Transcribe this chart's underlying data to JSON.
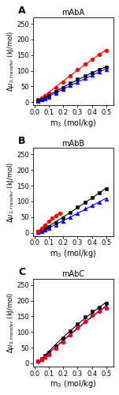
{
  "panels": [
    {
      "label": "A",
      "title": "mAbA",
      "series": [
        {
          "color": "red",
          "marker": "o",
          "x": [
            0.025,
            0.05,
            0.075,
            0.1,
            0.15,
            0.2,
            0.25,
            0.3,
            0.35,
            0.4,
            0.45,
            0.5
          ],
          "y": [
            8,
            14,
            20,
            28,
            45,
            65,
            85,
            105,
            122,
            138,
            152,
            165
          ]
        },
        {
          "color": "black",
          "marker": "s",
          "x": [
            0.025,
            0.05,
            0.075,
            0.1,
            0.15,
            0.2,
            0.25,
            0.3,
            0.35,
            0.4,
            0.45,
            0.5
          ],
          "y": [
            5,
            9,
            14,
            20,
            33,
            47,
            60,
            73,
            84,
            94,
            103,
            112
          ]
        },
        {
          "color": "blue",
          "marker": "^",
          "x": [
            0.025,
            0.05,
            0.075,
            0.1,
            0.15,
            0.2,
            0.25,
            0.3,
            0.35,
            0.4,
            0.45,
            0.5
          ],
          "y": [
            4,
            8,
            12,
            17,
            28,
            40,
            53,
            65,
            77,
            87,
            96,
            105
          ]
        }
      ],
      "ylim": [
        -10,
        270
      ],
      "yticks": [
        0,
        50,
        100,
        150,
        200,
        250
      ],
      "xlim": [
        -0.01,
        0.55
      ],
      "xticks": [
        0.0,
        0.1,
        0.2,
        0.3,
        0.4,
        0.5
      ]
    },
    {
      "label": "B",
      "title": "mAbB",
      "series": [
        {
          "color": "black",
          "marker": "s",
          "x": [
            0.025,
            0.05,
            0.075,
            0.1,
            0.15,
            0.2,
            0.25,
            0.3,
            0.35,
            0.4,
            0.45,
            0.5
          ],
          "y": [
            3,
            7,
            13,
            19,
            32,
            48,
            65,
            82,
            98,
            112,
            127,
            140
          ]
        },
        {
          "color": "blue",
          "marker": "^",
          "x": [
            0.025,
            0.05,
            0.075,
            0.1,
            0.15,
            0.2,
            0.25,
            0.3,
            0.35,
            0.4,
            0.45,
            0.5
          ],
          "y": [
            2,
            5,
            9,
            14,
            24,
            37,
            50,
            63,
            76,
            88,
            98,
            108
          ]
        },
        {
          "color": "red",
          "marker": "o",
          "x": [
            0.025,
            0.05,
            0.075,
            0.1,
            0.125,
            0.15,
            0.175
          ],
          "y": [
            5,
            14,
            24,
            36,
            46,
            55,
            62
          ]
        }
      ],
      "ylim": [
        -10,
        270
      ],
      "yticks": [
        0,
        50,
        100,
        150,
        200,
        250
      ],
      "xlim": [
        -0.01,
        0.55
      ],
      "xticks": [
        0.0,
        0.1,
        0.2,
        0.3,
        0.4,
        0.5
      ]
    },
    {
      "label": "C",
      "title": "mAbC",
      "series": [
        {
          "color": "black",
          "marker": "s",
          "x": [
            0.025,
            0.05,
            0.075,
            0.1,
            0.15,
            0.2,
            0.25,
            0.3,
            0.35,
            0.4,
            0.45,
            0.5
          ],
          "y": [
            8,
            15,
            24,
            34,
            56,
            80,
            104,
            126,
            148,
            165,
            178,
            190
          ]
        },
        {
          "color": "blue",
          "marker": "^",
          "x": [
            0.025,
            0.05,
            0.075,
            0.1,
            0.15,
            0.2,
            0.25,
            0.3,
            0.35,
            0.4,
            0.45,
            0.5
          ],
          "y": [
            6,
            12,
            20,
            29,
            49,
            70,
            93,
            115,
            135,
            155,
            168,
            178
          ]
        },
        {
          "color": "red",
          "marker": "o",
          "x": [
            0.025,
            0.05,
            0.075,
            0.1,
            0.15,
            0.2,
            0.25,
            0.3,
            0.35,
            0.4,
            0.45,
            0.5
          ],
          "y": [
            6,
            12,
            19,
            28,
            47,
            68,
            91,
            113,
            133,
            153,
            166,
            177
          ]
        }
      ],
      "ylim": [
        -10,
        270
      ],
      "yticks": [
        0,
        50,
        100,
        150,
        200,
        250
      ],
      "xlim": [
        -0.01,
        0.55
      ],
      "xticks": [
        0.0,
        0.1,
        0.2,
        0.3,
        0.4,
        0.5
      ]
    }
  ],
  "ylabel": "$\\Delta\\mu_{2,transfer}$ (kJ/mol)",
  "xlabel": "m$_3$ (mol/kg)",
  "markersize": 3.5,
  "linewidth": 0.8,
  "bg_color": "white",
  "label_fontsize": 7,
  "title_fontsize": 7,
  "tick_fontsize": 6,
  "ylabel_fontsize": 6,
  "xlabel_fontsize": 7
}
